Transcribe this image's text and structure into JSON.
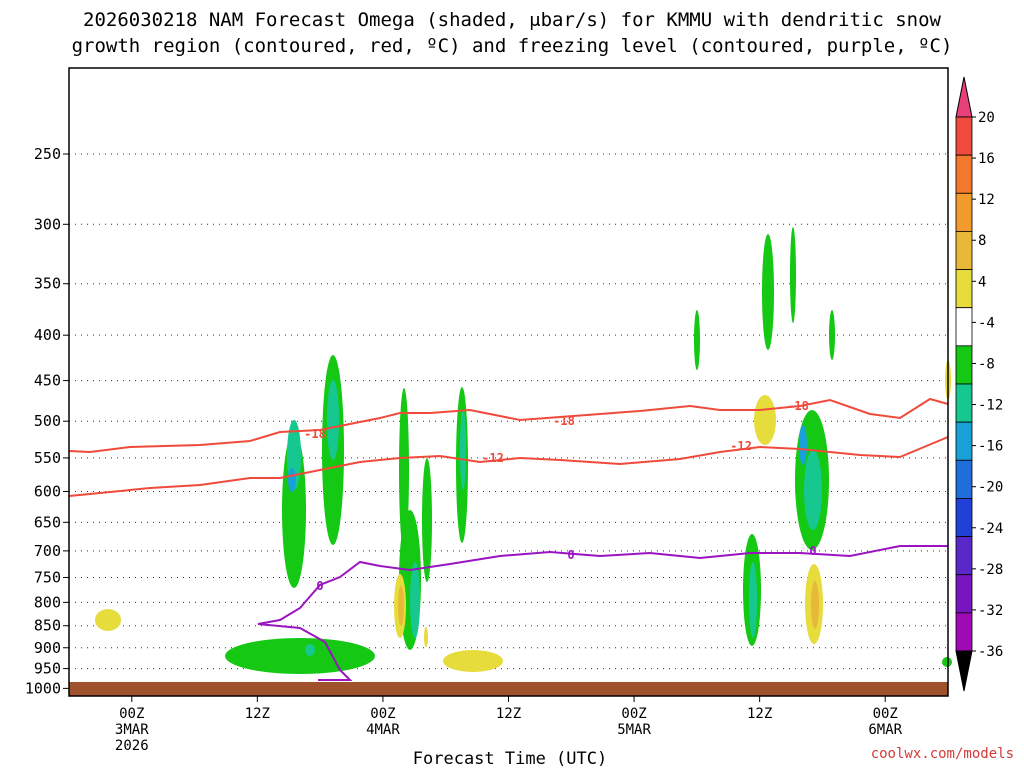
{
  "chart_data": {
    "type": "time-height cross-section",
    "title_line1": "2026030218 NAM Forecast Omega (shaded, μbar/s) for KMMU with dendritic snow",
    "title_line2": "growth region (contoured, red, ºC) and freezing level (contoured, purple, ºC)",
    "xlabel": "Forecast Time (UTC)",
    "credit": "coolwx.com/models",
    "x_range_hours": [
      -5,
      65
    ],
    "y_range_hPa": [
      1020,
      200
    ],
    "y_ticks": [
      "250",
      "300",
      "350",
      "400",
      "450",
      "500",
      "550",
      "600",
      "650",
      "700",
      "750",
      "800",
      "850",
      "900",
      "950",
      "1000"
    ],
    "x_ticks": [
      {
        "hour": 0,
        "lines": [
          "00Z",
          "3MAR",
          "2026"
        ]
      },
      {
        "hour": 10,
        "lines": [
          "12Z"
        ]
      },
      {
        "hour": 20,
        "lines": [
          "00Z",
          "4MAR"
        ]
      },
      {
        "hour": 30,
        "lines": [
          "12Z"
        ]
      },
      {
        "hour": 40,
        "lines": [
          "00Z",
          "5MAR"
        ]
      },
      {
        "hour": 50,
        "lines": [
          "12Z"
        ]
      },
      {
        "hour": 60,
        "lines": [
          "00Z",
          "6MAR"
        ]
      }
    ],
    "colorbar": {
      "labels": [
        "20",
        "16",
        "12",
        "8",
        "4",
        "-4",
        "-8",
        "-12",
        "-16",
        "-20",
        "-24",
        "-28",
        "-32",
        "-36"
      ],
      "colors": [
        "#e8407a",
        "#f04a3c",
        "#f3782c",
        "#f39a2c",
        "#e8b838",
        "#e6dc3c",
        "#ffffff",
        "#14c814",
        "#16c890",
        "#1aa0d8",
        "#1e6edc",
        "#2040d8",
        "#5a28c8",
        "#7814c0",
        "#a00ab4",
        "#a0a0a0"
      ]
    },
    "contour_labels": {
      "red": [
        "-18",
        "-12",
        "-18",
        "-12",
        "-18",
        "-12"
      ],
      "purple": [
        "0",
        "0",
        "0"
      ]
    }
  }
}
